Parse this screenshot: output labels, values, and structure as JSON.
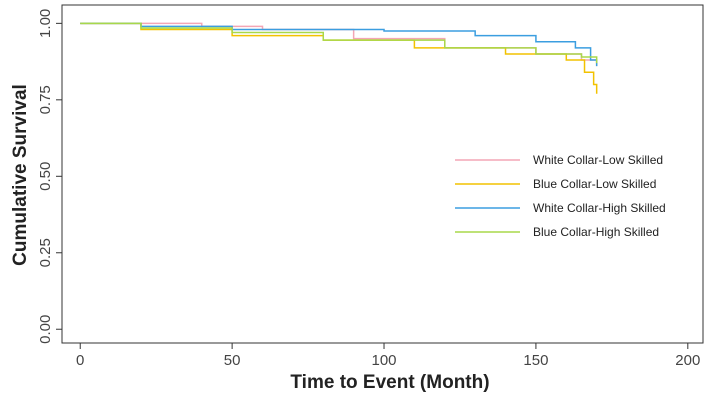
{
  "chart_data": {
    "type": "step",
    "xlabel": "Time to Event (Month)",
    "ylabel": "Cumulative Survival",
    "xlim": [
      -6,
      205
    ],
    "ylim": [
      -0.045,
      1.06
    ],
    "xticks": [
      0,
      50,
      100,
      150,
      200
    ],
    "yticks": [
      {
        "value": 0,
        "label": "0.00"
      },
      {
        "value": 0.25,
        "label": "0.25"
      },
      {
        "value": 0.5,
        "label": "0.50"
      },
      {
        "value": 0.75,
        "label": "0.75"
      },
      {
        "value": 1,
        "label": "1.00"
      }
    ],
    "legend": "right",
    "series": [
      {
        "name": "White Collar-Low Skilled",
        "color": "#f4a6b5",
        "x": [
          0,
          40,
          60,
          90,
          120,
          150,
          165,
          170
        ],
        "values": [
          1,
          0.99,
          0.98,
          0.95,
          0.92,
          0.9,
          0.88,
          0.86
        ]
      },
      {
        "name": "Blue Collar-Low Skilled",
        "color": "#f2c200",
        "x": [
          0,
          20,
          50,
          80,
          110,
          140,
          160,
          166,
          169,
          170
        ],
        "values": [
          1,
          0.98,
          0.96,
          0.945,
          0.92,
          0.9,
          0.88,
          0.84,
          0.8,
          0.77
        ]
      },
      {
        "name": "White Collar-High Skilled",
        "color": "#3b9ee0",
        "x": [
          0,
          20,
          50,
          100,
          130,
          150,
          163,
          168,
          170
        ],
        "values": [
          1,
          0.99,
          0.98,
          0.975,
          0.96,
          0.94,
          0.92,
          0.88,
          0.86
        ]
      },
      {
        "name": "Blue Collar-High Skilled",
        "color": "#a8d84a",
        "x": [
          0,
          20,
          50,
          80,
          120,
          150,
          165,
          170
        ],
        "values": [
          1,
          0.985,
          0.97,
          0.945,
          0.92,
          0.9,
          0.89,
          0.87
        ]
      }
    ]
  }
}
